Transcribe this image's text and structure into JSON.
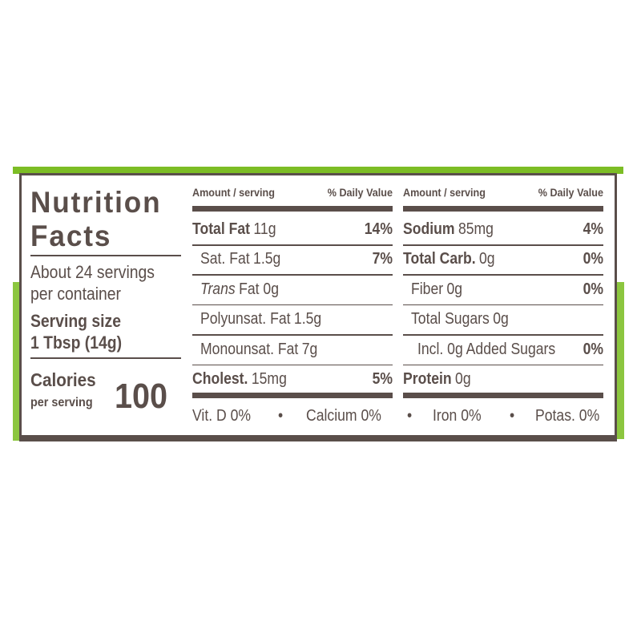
{
  "colors": {
    "accent": "#7cbd25",
    "text": "#5a4e4a"
  },
  "title_line1": "Nutrition",
  "title_line2": "Facts",
  "servings_line1": "About 24 servings",
  "servings_line2": "per container",
  "serving_size_label": "Serving size",
  "serving_size_value": "1 Tbsp (14g)",
  "calories_label": "Calories",
  "calories_sub": "per serving",
  "calories_value": "100",
  "header": {
    "amount": "Amount / serving",
    "dv": "% Daily Value"
  },
  "left_rows": [
    {
      "name": "Total Fat",
      "amount": "11g",
      "dv": "14%",
      "bold": true,
      "indent": 0
    },
    {
      "name": "Sat. Fat",
      "amount": "1.5g",
      "dv": "7%",
      "bold": false,
      "indent": 1
    },
    {
      "name": "Trans",
      "amount": "Fat 0g",
      "dv": "",
      "bold": false,
      "indent": 1,
      "italic": true
    },
    {
      "name": "Polyunsat. Fat",
      "amount": "1.5g",
      "dv": "",
      "bold": false,
      "indent": 1
    },
    {
      "name": "Monounsat. Fat",
      "amount": "7g",
      "dv": "",
      "bold": false,
      "indent": 1
    },
    {
      "name": "Cholest.",
      "amount": "15mg",
      "dv": "5%",
      "bold": true,
      "indent": 0
    }
  ],
  "right_rows": [
    {
      "name": "Sodium",
      "amount": "85mg",
      "dv": "4%",
      "bold": true,
      "indent": 0
    },
    {
      "name": "Total Carb.",
      "amount": "0g",
      "dv": "0%",
      "bold": true,
      "indent": 0
    },
    {
      "name": "Fiber",
      "amount": "0g",
      "dv": "0%",
      "bold": false,
      "indent": 1
    },
    {
      "name": "Total Sugars",
      "amount": "0g",
      "dv": "",
      "bold": false,
      "indent": 1
    },
    {
      "name": "Incl. 0g Added Sugars",
      "amount": "",
      "dv": "0%",
      "bold": false,
      "indent": 2
    },
    {
      "name": "Protein",
      "amount": "0g",
      "dv": "",
      "bold": true,
      "indent": 0
    }
  ],
  "vitamins": [
    "Vit. D 0%",
    "Calcium 0%",
    "Iron 0%",
    "Potas. 0%"
  ],
  "separator": "•"
}
